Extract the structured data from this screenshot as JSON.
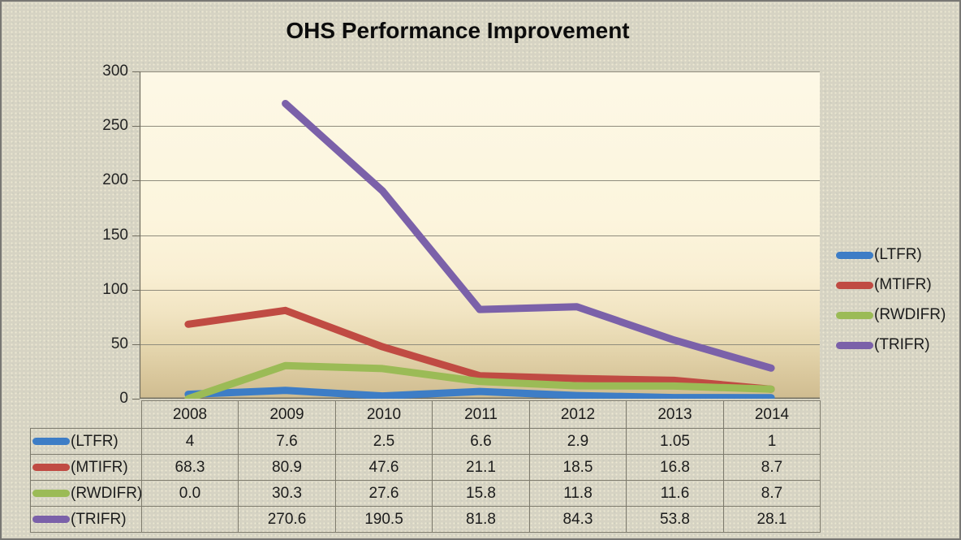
{
  "chart_data": {
    "type": "line",
    "title": "OHS Performance Improvement",
    "categories": [
      "2008",
      "2009",
      "2010",
      "2011",
      "2012",
      "2013",
      "2014"
    ],
    "series": [
      {
        "name": "(LTFR)",
        "color": "#3d7dc6",
        "values": [
          4,
          7.6,
          2.5,
          6.6,
          2.9,
          1.05,
          1
        ],
        "display": [
          "4",
          "7.6",
          "2.5",
          "6.6",
          "2.9",
          "1.05",
          "1"
        ]
      },
      {
        "name": "(MTIFR)",
        "color": "#c04b43",
        "values": [
          68.3,
          80.9,
          47.6,
          21.1,
          18.5,
          16.8,
          8.7
        ],
        "display": [
          "68.3",
          "80.9",
          "47.6",
          "21.1",
          "18.5",
          "16.8",
          "8.7"
        ]
      },
      {
        "name": "(RWDIFR)",
        "color": "#9bbb56",
        "values": [
          0,
          30.3,
          27.6,
          15.8,
          11.8,
          11.6,
          8.7
        ],
        "display": [
          "0.0",
          "30.3",
          "27.6",
          "15.8",
          "11.8",
          "11.6",
          "8.7"
        ]
      },
      {
        "name": "(TRIFR)",
        "color": "#7b61a9",
        "values": [
          null,
          270.6,
          190.5,
          81.8,
          84.3,
          53.8,
          28.1
        ],
        "display": [
          "",
          "270.6",
          "190.5",
          "81.8",
          "84.3",
          "53.8",
          "28.1"
        ]
      }
    ],
    "ylim": [
      0,
      300
    ],
    "yticks": [
      0,
      50,
      100,
      150,
      200,
      250,
      300
    ],
    "grid": true,
    "legend_position": "right",
    "data_table": true,
    "line_width": 9
  },
  "style_colors": {
    "gridline": "#8f8c7d",
    "axis_line": "#6d6a5d",
    "table_border": "#7e7b6d"
  }
}
